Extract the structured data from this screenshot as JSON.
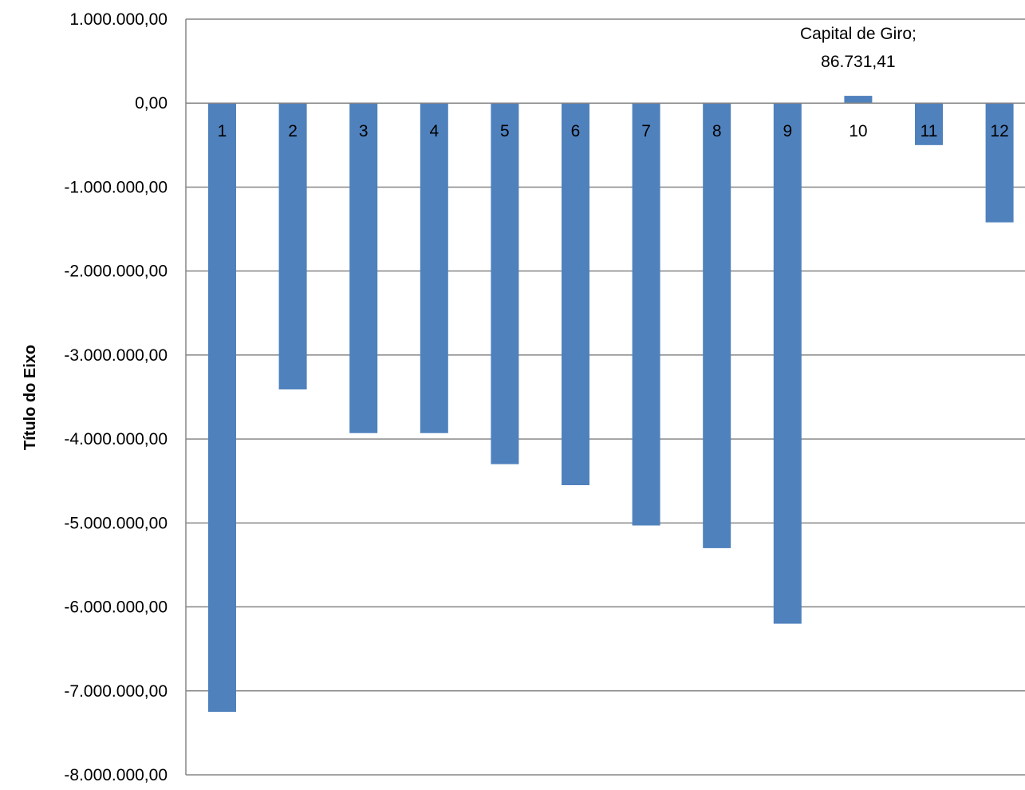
{
  "colors": {
    "bar": "#4f81bd",
    "grid": "#868686",
    "axis": "#868686",
    "text": "#000000"
  },
  "chart_data": {
    "type": "bar",
    "title": "",
    "xlabel": "",
    "ylabel": "Título do Eixo",
    "ylim": [
      -8000000,
      1000000
    ],
    "y_ticks": [
      1000000,
      0,
      -1000000,
      -2000000,
      -3000000,
      -4000000,
      -5000000,
      -6000000,
      -7000000,
      -8000000
    ],
    "y_tick_labels": [
      "1.000.000,00",
      "0,00",
      "-1.000.000,00",
      "-2.000.000,00",
      "-3.000.000,00",
      "-4.000.000,00",
      "-5.000.000,00",
      "-6.000.000,00",
      "-7.000.000,00",
      "-8.000.000,00"
    ],
    "grid": true,
    "legend": "none",
    "categories": [
      "1",
      "2",
      "3",
      "4",
      "5",
      "6",
      "7",
      "8",
      "9",
      "10",
      "11",
      "12"
    ],
    "values": [
      -7250000,
      -3410000,
      -3930000,
      -3930000,
      -4300000,
      -4550000,
      -5030000,
      -5300000,
      -6200000,
      86731.41,
      -500000,
      -1420000
    ],
    "data_labels": [
      {
        "category_index": 9,
        "lines": [
          "Capital de Giro;",
          "86.731,41"
        ]
      }
    ]
  }
}
